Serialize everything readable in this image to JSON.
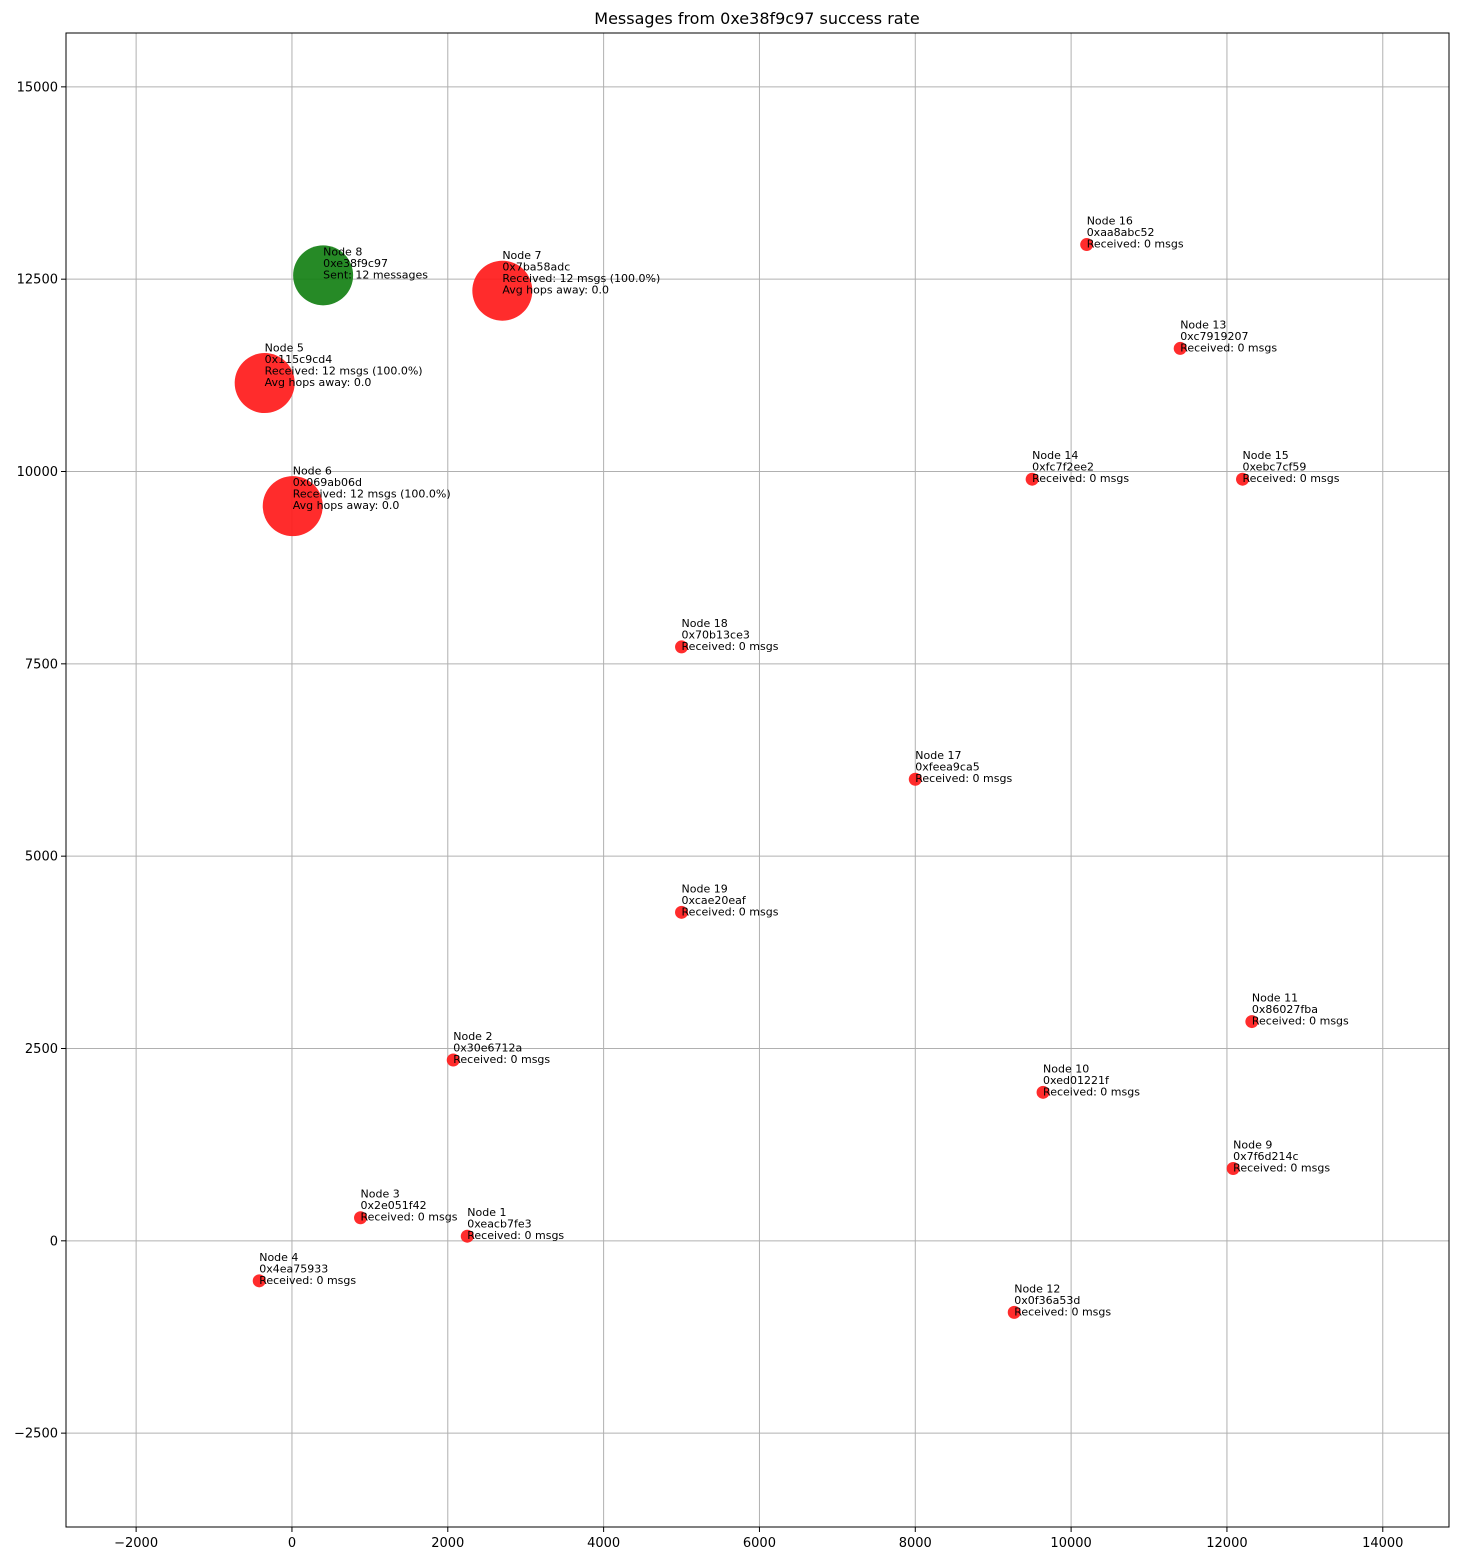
{
  "chart_data": {
    "type": "scatter",
    "title": "Messages from 0xe38f9c97 success rate",
    "xlabel": "",
    "ylabel": "",
    "xlim": [
      -2900,
      14850
    ],
    "ylim": [
      -3720,
      15700
    ],
    "x_ticks": [
      -2000,
      0,
      2000,
      4000,
      6000,
      8000,
      10000,
      12000,
      14000
    ],
    "y_ticks": [
      -2500,
      0,
      2500,
      5000,
      7500,
      10000,
      12500,
      15000
    ],
    "grid": true,
    "colors": {
      "sender": "#138013",
      "receiver": "#ff1a1a"
    },
    "points": [
      {
        "x": 400,
        "y": 12550,
        "role": "sender",
        "size": "large",
        "lines": [
          "Node 8",
          "0xe38f9c97",
          "Sent: 12 messages"
        ]
      },
      {
        "x": 2700,
        "y": 12350,
        "role": "receiver",
        "size": "large",
        "lines": [
          "Node 7",
          "0x7ba58adc",
          "Received: 12 msgs (100.0%)",
          "Avg hops away: 0.0"
        ]
      },
      {
        "x": -350,
        "y": 11150,
        "role": "receiver",
        "size": "large",
        "lines": [
          "Node 5",
          "0x115c9cd4",
          "Received: 12 msgs (100.0%)",
          "Avg hops away: 0.0"
        ]
      },
      {
        "x": 10,
        "y": 9550,
        "role": "receiver",
        "size": "large",
        "lines": [
          "Node 6",
          "0x069ab06d",
          "Received: 12 msgs (100.0%)",
          "Avg hops away: 0.0"
        ]
      },
      {
        "x": 10200,
        "y": 12950,
        "role": "receiver",
        "size": "small",
        "lines": [
          "Node 16",
          "0xaa8abc52",
          "Received: 0 msgs"
        ]
      },
      {
        "x": 11400,
        "y": 11600,
        "role": "receiver",
        "size": "small",
        "lines": [
          "Node 13",
          "0xc7919207",
          "Received: 0 msgs"
        ]
      },
      {
        "x": 9500,
        "y": 9900,
        "role": "receiver",
        "size": "small",
        "lines": [
          "Node 14",
          "0xfc7f2ee2",
          "Received: 0 msgs"
        ]
      },
      {
        "x": 12200,
        "y": 9900,
        "role": "receiver",
        "size": "small",
        "lines": [
          "Node 15",
          "0xebc7cf59",
          "Received: 0 msgs"
        ]
      },
      {
        "x": 5000,
        "y": 7720,
        "role": "receiver",
        "size": "small",
        "lines": [
          "Node 18",
          "0x70b13ce3",
          "Received: 0 msgs"
        ]
      },
      {
        "x": 8000,
        "y": 6000,
        "role": "receiver",
        "size": "small",
        "lines": [
          "Node 17",
          "0xfeea9ca5",
          "Received: 0 msgs"
        ]
      },
      {
        "x": 5000,
        "y": 4270,
        "role": "receiver",
        "size": "small",
        "lines": [
          "Node 19",
          "0xcae20eaf",
          "Received: 0 msgs"
        ]
      },
      {
        "x": 12320,
        "y": 2850,
        "role": "receiver",
        "size": "small",
        "lines": [
          "Node 11",
          "0x86027fba",
          "Received: 0 msgs"
        ]
      },
      {
        "x": 2070,
        "y": 2350,
        "role": "receiver",
        "size": "small",
        "lines": [
          "Node 2",
          "0x30e6712a",
          "Received: 0 msgs"
        ]
      },
      {
        "x": 9640,
        "y": 1930,
        "role": "receiver",
        "size": "small",
        "lines": [
          "Node 10",
          "0xed01221f",
          "Received: 0 msgs"
        ]
      },
      {
        "x": 12080,
        "y": 940,
        "role": "receiver",
        "size": "small",
        "lines": [
          "Node 9",
          "0x7f6d214c",
          "Received: 0 msgs"
        ]
      },
      {
        "x": 880,
        "y": 300,
        "role": "receiver",
        "size": "small",
        "lines": [
          "Node 3",
          "0x2e051f42",
          "Received: 0 msgs"
        ]
      },
      {
        "x": 2250,
        "y": 60,
        "role": "receiver",
        "size": "small",
        "lines": [
          "Node 1",
          "0xeacb7fe3",
          "Received: 0 msgs"
        ]
      },
      {
        "x": -420,
        "y": -520,
        "role": "receiver",
        "size": "small",
        "lines": [
          "Node 4",
          "0x4ea75933",
          "Received: 0 msgs"
        ]
      },
      {
        "x": 9270,
        "y": -930,
        "role": "receiver",
        "size": "small",
        "lines": [
          "Node 12",
          "0x0f36a53d",
          "Received: 0 msgs"
        ]
      }
    ]
  }
}
